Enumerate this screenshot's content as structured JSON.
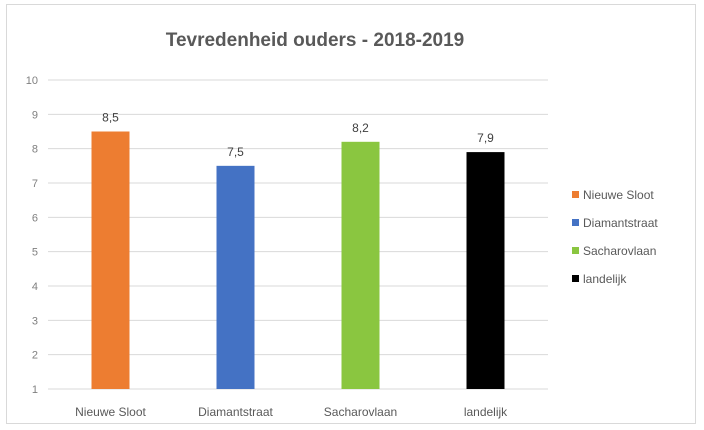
{
  "chart_data": {
    "type": "bar",
    "title": "Tevredenheid ouders - 2018-2019",
    "categories": [
      "Nieuwe Sloot",
      "Diamantstraat",
      "Sacharovlaan",
      "landelijk"
    ],
    "values": [
      8.5,
      7.5,
      8.2,
      7.9
    ],
    "data_labels": [
      "8,5",
      "7,5",
      "8,2",
      "7,9"
    ],
    "colors": [
      "#ed7d31",
      "#4472c4",
      "#8ac640",
      "#000000"
    ],
    "ylim": [
      1,
      10
    ],
    "yticks": [
      "1",
      "2",
      "3",
      "4",
      "5",
      "6",
      "7",
      "8",
      "9",
      "10"
    ],
    "grid": true,
    "legend_position": "right",
    "legend": [
      "Nieuwe Sloot",
      "Diamantstraat",
      "Sacharovlaan",
      "landelijk"
    ]
  }
}
